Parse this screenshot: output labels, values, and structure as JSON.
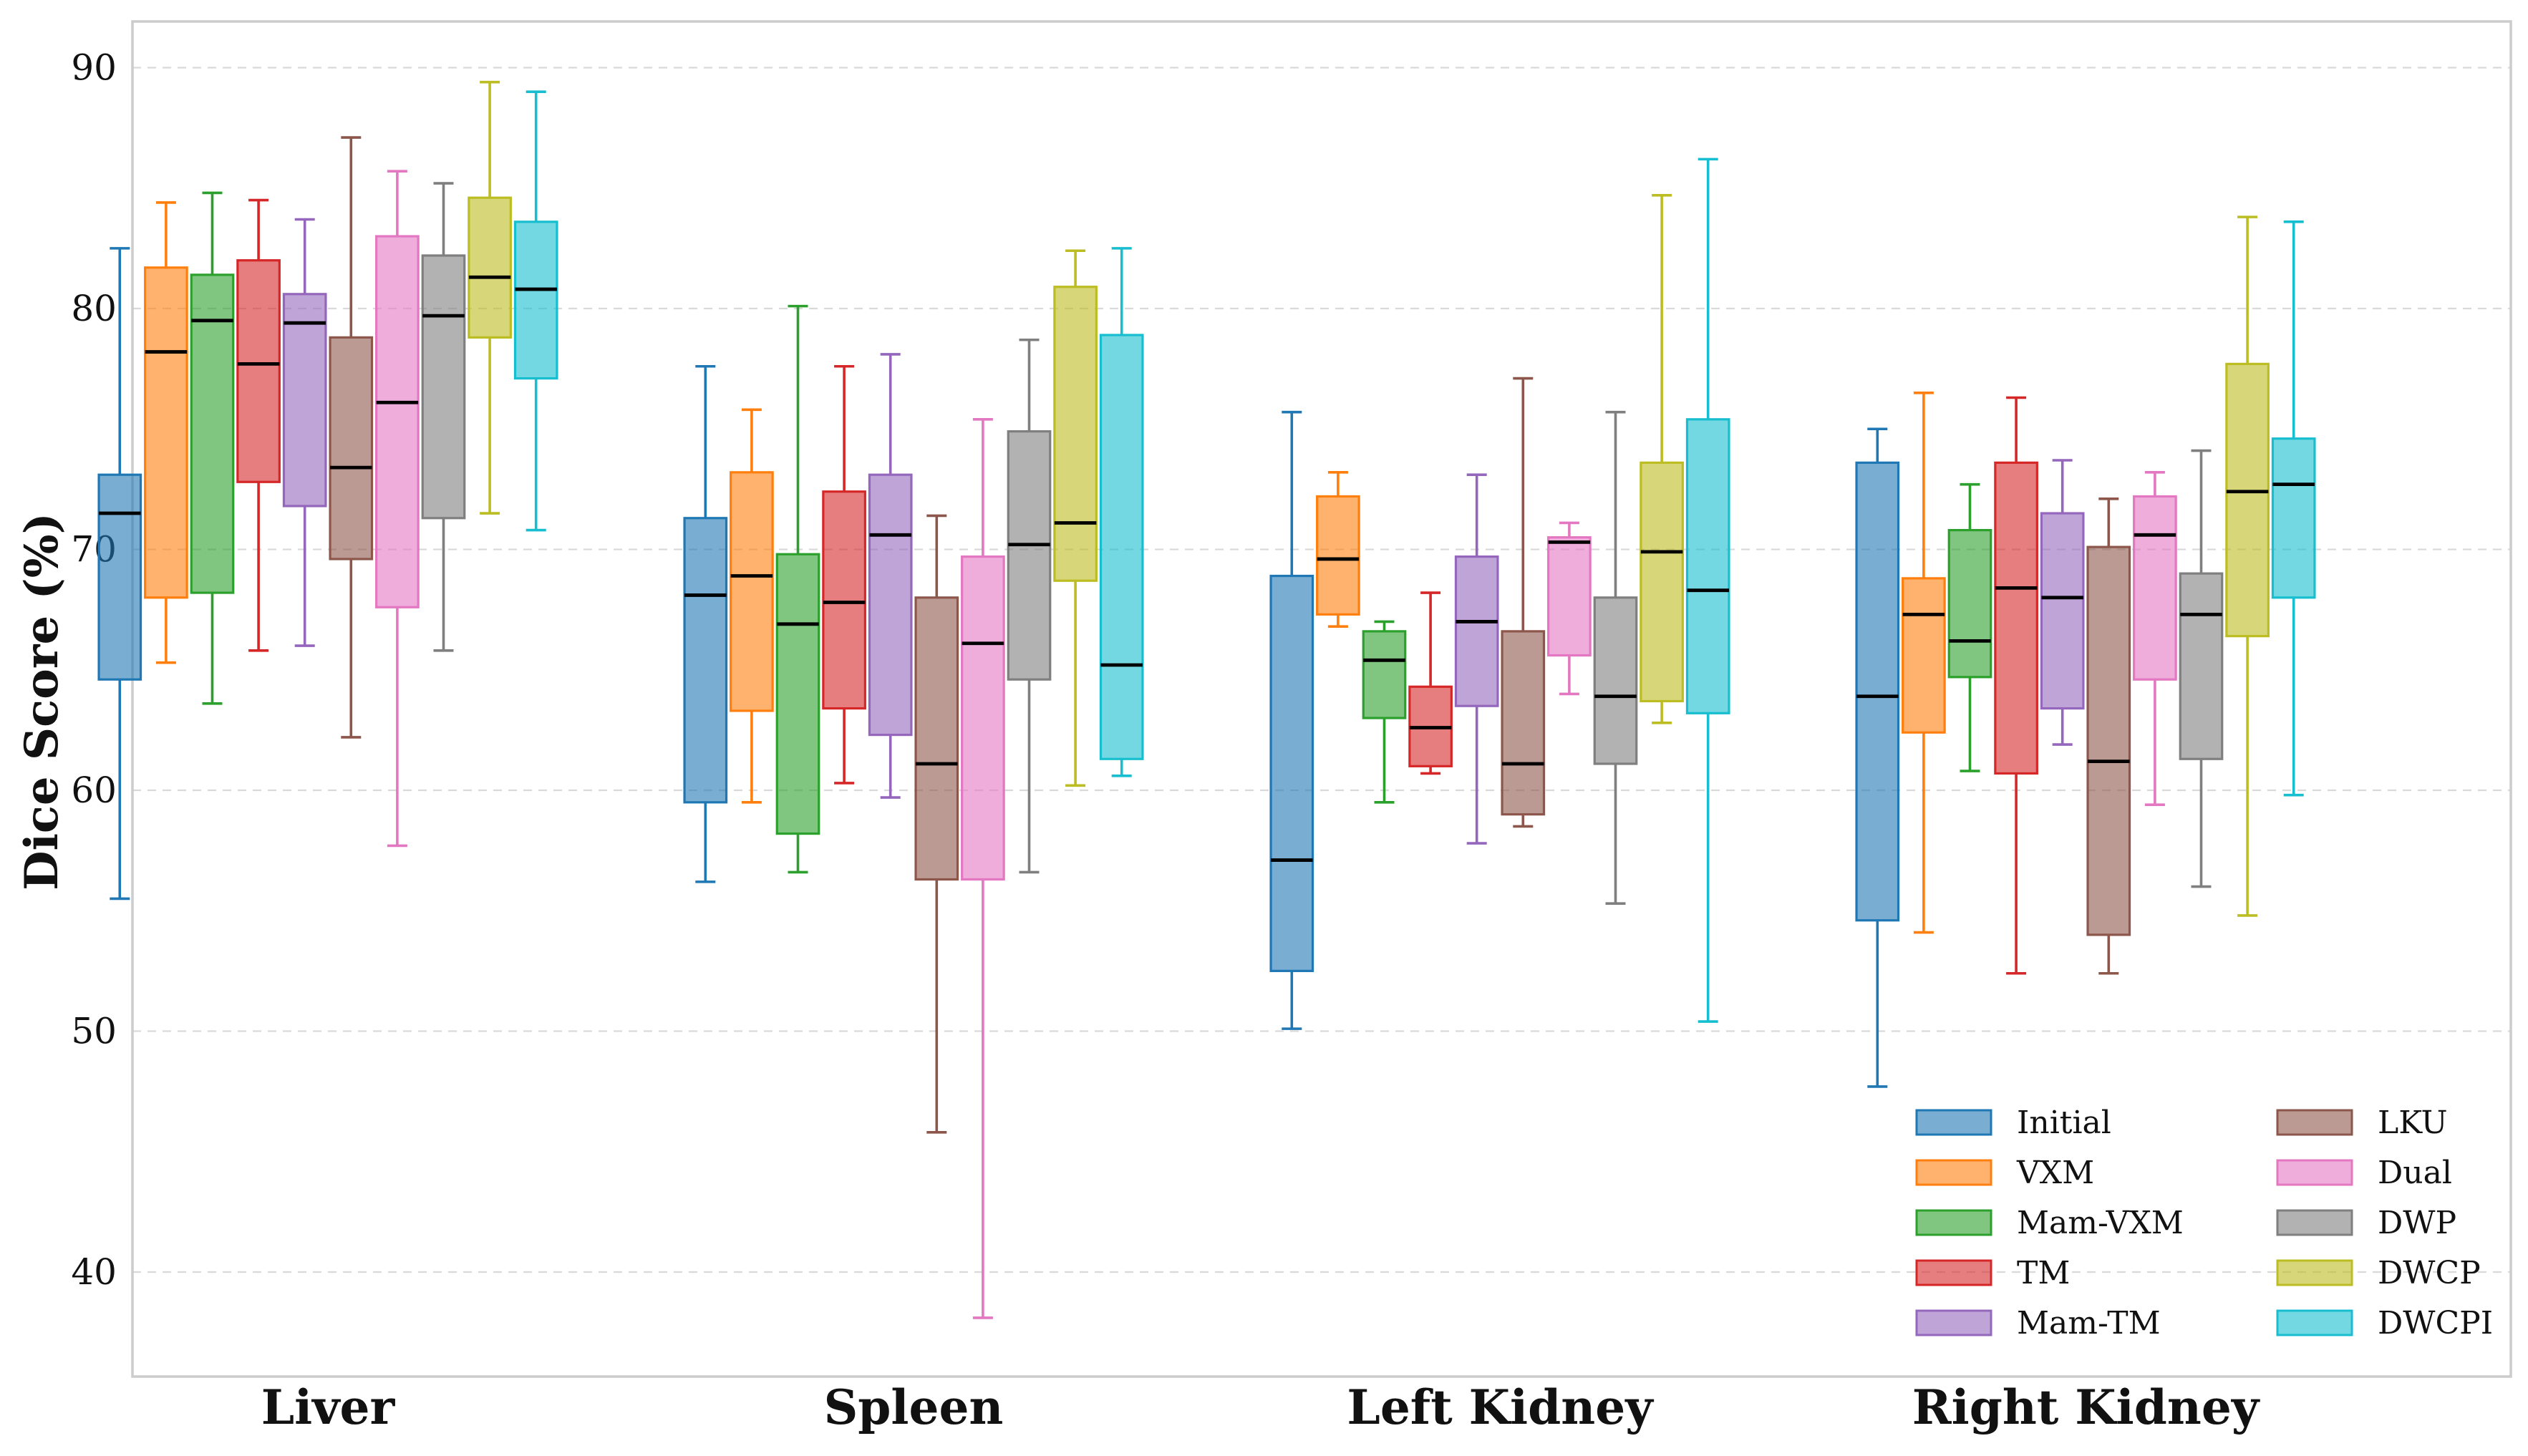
{
  "chart_data": {
    "type": "box",
    "title": "",
    "xlabel": "",
    "ylabel": "Dice Score (%)",
    "ylim": [
      35.5,
      92
    ],
    "yticks": [
      40,
      50,
      60,
      70,
      80,
      90
    ],
    "grid": true,
    "legend_position": "bottom-right",
    "categories": [
      "Liver",
      "Spleen",
      "Left Kidney",
      "Right Kidney"
    ],
    "series": [
      {
        "name": "Initial",
        "color": "#1f77b4",
        "boxes": [
          {
            "whisker_low": 55.5,
            "q1": 64.6,
            "median": 71.5,
            "q3": 73.1,
            "whisker_high": 82.5
          },
          {
            "whisker_low": 56.2,
            "q1": 59.5,
            "median": 68.1,
            "q3": 71.3,
            "whisker_high": 77.6
          },
          {
            "whisker_low": 50.1,
            "q1": 52.5,
            "median": 57.1,
            "q3": 68.9,
            "whisker_high": 75.7
          },
          {
            "whisker_low": 47.7,
            "q1": 54.6,
            "median": 63.9,
            "q3": 73.6,
            "whisker_high": 75.0
          }
        ]
      },
      {
        "name": "VXM",
        "color": "#ff7f0e",
        "boxes": [
          {
            "whisker_low": 65.3,
            "q1": 68.0,
            "median": 78.2,
            "q3": 81.7,
            "whisker_high": 84.4
          },
          {
            "whisker_low": 59.5,
            "q1": 63.3,
            "median": 68.9,
            "q3": 73.2,
            "whisker_high": 75.8
          },
          {
            "whisker_low": 66.8,
            "q1": 67.3,
            "median": 69.6,
            "q3": 72.2,
            "whisker_high": 73.2
          },
          {
            "whisker_low": 54.1,
            "q1": 62.4,
            "median": 67.3,
            "q3": 68.8,
            "whisker_high": 76.5
          }
        ]
      },
      {
        "name": "Mam-VXM",
        "color": "#2ca02c",
        "boxes": [
          {
            "whisker_low": 63.6,
            "q1": 68.2,
            "median": 79.5,
            "q3": 81.4,
            "whisker_high": 84.8
          },
          {
            "whisker_low": 56.6,
            "q1": 58.2,
            "median": 66.9,
            "q3": 69.8,
            "whisker_high": 80.1
          },
          {
            "whisker_low": 59.5,
            "q1": 63.0,
            "median": 65.4,
            "q3": 66.6,
            "whisker_high": 67.0
          },
          {
            "whisker_low": 60.8,
            "q1": 64.7,
            "median": 66.2,
            "q3": 70.8,
            "whisker_high": 72.7
          }
        ]
      },
      {
        "name": "TM",
        "color": "#d62728",
        "boxes": [
          {
            "whisker_low": 65.8,
            "q1": 72.8,
            "median": 77.7,
            "q3": 82.0,
            "whisker_high": 84.5
          },
          {
            "whisker_low": 60.3,
            "q1": 63.4,
            "median": 67.8,
            "q3": 72.4,
            "whisker_high": 77.6
          },
          {
            "whisker_low": 60.7,
            "q1": 61.0,
            "median": 62.6,
            "q3": 64.3,
            "whisker_high": 68.2
          },
          {
            "whisker_low": 52.4,
            "q1": 60.7,
            "median": 68.4,
            "q3": 73.6,
            "whisker_high": 76.3
          }
        ]
      },
      {
        "name": "Mam-TM",
        "color": "#9467bd",
        "boxes": [
          {
            "whisker_low": 66.0,
            "q1": 71.8,
            "median": 79.4,
            "q3": 80.6,
            "whisker_high": 83.7
          },
          {
            "whisker_low": 59.7,
            "q1": 62.3,
            "median": 70.6,
            "q3": 73.1,
            "whisker_high": 78.1
          },
          {
            "whisker_low": 57.8,
            "q1": 63.5,
            "median": 67.0,
            "q3": 69.7,
            "whisker_high": 73.1
          },
          {
            "whisker_low": 61.9,
            "q1": 63.4,
            "median": 68.0,
            "q3": 71.5,
            "whisker_high": 73.7
          }
        ]
      },
      {
        "name": "LKU",
        "color": "#8c564b",
        "boxes": [
          {
            "whisker_low": 62.2,
            "q1": 69.6,
            "median": 73.4,
            "q3": 78.8,
            "whisker_high": 87.1
          },
          {
            "whisker_low": 45.8,
            "q1": 56.3,
            "median": 61.1,
            "q3": 68.0,
            "whisker_high": 71.4
          },
          {
            "whisker_low": 58.5,
            "q1": 59.0,
            "median": 61.1,
            "q3": 66.6,
            "whisker_high": 77.1
          },
          {
            "whisker_low": 52.4,
            "q1": 54.0,
            "median": 61.2,
            "q3": 70.1,
            "whisker_high": 72.1
          }
        ]
      },
      {
        "name": "Dual",
        "color": "#e377c2",
        "boxes": [
          {
            "whisker_low": 57.7,
            "q1": 67.6,
            "median": 76.1,
            "q3": 83.0,
            "whisker_high": 85.7
          },
          {
            "whisker_low": 38.1,
            "q1": 56.3,
            "median": 66.1,
            "q3": 69.7,
            "whisker_high": 75.4
          },
          {
            "whisker_low": 64.0,
            "q1": 65.6,
            "median": 70.3,
            "q3": 70.5,
            "whisker_high": 71.1
          },
          {
            "whisker_low": 59.4,
            "q1": 64.6,
            "median": 70.6,
            "q3": 72.2,
            "whisker_high": 73.2
          }
        ]
      },
      {
        "name": "DWP",
        "color": "#7f7f7f",
        "boxes": [
          {
            "whisker_low": 65.8,
            "q1": 71.3,
            "median": 79.7,
            "q3": 82.2,
            "whisker_high": 85.2
          },
          {
            "whisker_low": 56.6,
            "q1": 64.6,
            "median": 70.2,
            "q3": 74.9,
            "whisker_high": 78.7
          },
          {
            "whisker_low": 55.3,
            "q1": 61.1,
            "median": 63.9,
            "q3": 68.0,
            "whisker_high": 75.7
          },
          {
            "whisker_low": 56.0,
            "q1": 61.3,
            "median": 67.3,
            "q3": 69.0,
            "whisker_high": 74.1
          }
        ]
      },
      {
        "name": "DWCP",
        "color": "#bcbd22",
        "boxes": [
          {
            "whisker_low": 71.5,
            "q1": 78.8,
            "median": 81.3,
            "q3": 84.6,
            "whisker_high": 89.4
          },
          {
            "whisker_low": 60.2,
            "q1": 68.7,
            "median": 71.1,
            "q3": 80.9,
            "whisker_high": 82.4
          },
          {
            "whisker_low": 62.8,
            "q1": 63.7,
            "median": 69.9,
            "q3": 73.6,
            "whisker_high": 84.7
          },
          {
            "whisker_low": 54.8,
            "q1": 66.4,
            "median": 72.4,
            "q3": 77.7,
            "whisker_high": 83.8
          }
        ]
      },
      {
        "name": "DWCPI",
        "color": "#17becf",
        "boxes": [
          {
            "whisker_low": 70.8,
            "q1": 77.1,
            "median": 80.8,
            "q3": 83.6,
            "whisker_high": 89.0
          },
          {
            "whisker_low": 60.6,
            "q1": 61.3,
            "median": 65.2,
            "q3": 78.9,
            "whisker_high": 82.5
          },
          {
            "whisker_low": 50.4,
            "q1": 63.2,
            "median": 68.3,
            "q3": 75.4,
            "whisker_high": 86.2
          },
          {
            "whisker_low": 59.8,
            "q1": 68.0,
            "median": 72.7,
            "q3": 74.6,
            "whisker_high": 83.6
          }
        ]
      }
    ]
  }
}
